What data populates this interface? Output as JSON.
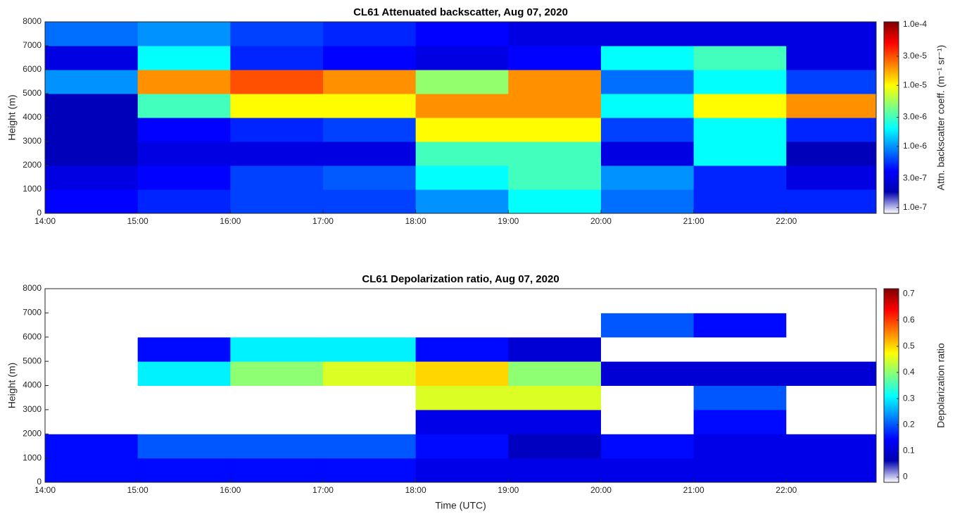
{
  "chart_data": [
    {
      "type": "heatmap",
      "title": "CL61 Attenuated backscatter, Aug 07, 2020",
      "ylabel": "Height (m)",
      "clabel": "Attn. backscatter coeff. (m⁻¹ sr⁻¹)",
      "x": [
        14.5,
        15.5,
        16.5,
        17.5,
        18.5,
        19.5,
        20.5,
        21.5,
        22.5
      ],
      "y": [
        500,
        1500,
        2500,
        3500,
        4500,
        5500,
        6500,
        7500
      ],
      "z": [
        [
          4e-07,
          5e-07,
          6e-07,
          6e-07,
          1e-06,
          2e-06,
          8e-07,
          5e-07,
          5e-07
        ],
        [
          3e-07,
          4e-07,
          6e-07,
          7e-07,
          2e-06,
          3e-06,
          1e-06,
          5e-07,
          3e-07
        ],
        [
          2e-07,
          3e-07,
          3e-07,
          3e-07,
          3e-06,
          3e-06,
          3e-07,
          2e-06,
          2e-07
        ],
        [
          2e-07,
          4e-07,
          5e-07,
          6e-07,
          1e-05,
          1e-05,
          6e-07,
          2e-06,
          5e-07
        ],
        [
          2e-07,
          3e-06,
          1e-05,
          1e-05,
          2e-05,
          2e-05,
          2e-06,
          1e-05,
          2e-05
        ],
        [
          1e-06,
          2e-05,
          3e-05,
          2e-05,
          5e-06,
          2e-05,
          8e-07,
          2e-06,
          6e-07
        ],
        [
          3e-07,
          2e-06,
          5e-07,
          4e-07,
          3e-07,
          4e-07,
          2e-06,
          3e-06,
          3e-07
        ],
        [
          8e-07,
          1e-06,
          6e-07,
          5e-07,
          4e-07,
          3e-07,
          3e-07,
          3e-07,
          3e-07
        ]
      ],
      "xlim": [
        14,
        22.97
      ],
      "ylim": [
        0,
        8000
      ],
      "xticks": [
        {
          "value": 14,
          "label": "14:00"
        },
        {
          "value": 15,
          "label": "15:00"
        },
        {
          "value": 16,
          "label": "16:00"
        },
        {
          "value": 17,
          "label": "17:00"
        },
        {
          "value": 18,
          "label": "18:00"
        },
        {
          "value": 19,
          "label": "19:00"
        },
        {
          "value": 20,
          "label": "20:00"
        },
        {
          "value": 21,
          "label": "21:00"
        },
        {
          "value": 22,
          "label": "22:00"
        }
      ],
      "yticks": [
        0,
        1000,
        2000,
        3000,
        4000,
        5000,
        6000,
        7000,
        8000
      ],
      "clim": [
        8e-08,
        0.00011
      ],
      "color_log": true,
      "cticks": [
        {
          "value": 1e-07,
          "label": "1.0e-7"
        },
        {
          "value": 3e-07,
          "label": "3.0e-7"
        },
        {
          "value": 1e-06,
          "label": "1.0e-6"
        },
        {
          "value": 3e-06,
          "label": "3.0e-6"
        },
        {
          "value": 1e-05,
          "label": "1.0e-5"
        },
        {
          "value": 3e-05,
          "label": "3.0e-5"
        },
        {
          "value": 0.0001,
          "label": "1.0e-4"
        }
      ],
      "colors": [
        "#ffffff",
        "#0000b0",
        "#0000ff",
        "#0080ff",
        "#00ffff",
        "#80ff80",
        "#ffff00",
        "#ff8000",
        "#ff0000",
        "#800000"
      ],
      "out_of_range_color": "#ffffff"
    },
    {
      "type": "heatmap",
      "title": "CL61 Depolarization ratio, Aug 07, 2020",
      "ylabel": "Height (m)",
      "xlabel": "Time (UTC)",
      "clabel": "Depolarization ratio",
      "x": [
        14.5,
        15.5,
        16.5,
        17.5,
        18.5,
        19.5,
        20.5,
        21.5,
        22.5
      ],
      "y": [
        500,
        1500,
        2500,
        3500,
        4500,
        5500,
        6500,
        7500
      ],
      "z": [
        [
          0.15,
          0.15,
          0.15,
          0.15,
          0.12,
          0.12,
          0.12,
          0.12,
          0.12
        ],
        [
          0.15,
          0.2,
          0.2,
          0.2,
          0.15,
          0.08,
          0.15,
          0.12,
          0.12
        ],
        [
          0.75,
          0.75,
          0.75,
          0.75,
          0.12,
          0.12,
          0.75,
          0.15,
          0.75
        ],
        [
          0.75,
          0.75,
          0.75,
          0.75,
          0.45,
          0.45,
          0.75,
          0.2,
          0.75
        ],
        [
          0.75,
          0.3,
          0.4,
          0.45,
          0.5,
          0.4,
          0.1,
          0.1,
          0.1
        ],
        [
          0.75,
          0.15,
          0.3,
          0.3,
          0.15,
          0.1,
          0.75,
          0.75,
          0.75
        ],
        [
          0.75,
          0.75,
          0.75,
          0.75,
          0.75,
          0.75,
          0.2,
          0.15,
          0.75
        ],
        [
          0.75,
          0.75,
          0.75,
          0.75,
          0.75,
          0.75,
          0.75,
          0.75,
          0.75
        ]
      ],
      "xlim": [
        14,
        22.97
      ],
      "ylim": [
        0,
        8000
      ],
      "xticks": [
        {
          "value": 14,
          "label": "14:00"
        },
        {
          "value": 15,
          "label": "15:00"
        },
        {
          "value": 16,
          "label": "16:00"
        },
        {
          "value": 17,
          "label": "17:00"
        },
        {
          "value": 18,
          "label": "18:00"
        },
        {
          "value": 19,
          "label": "19:00"
        },
        {
          "value": 20,
          "label": "20:00"
        },
        {
          "value": 21,
          "label": "21:00"
        },
        {
          "value": 22,
          "label": "22:00"
        }
      ],
      "yticks": [
        0,
        1000,
        2000,
        3000,
        4000,
        5000,
        6000,
        7000,
        8000
      ],
      "clim": [
        -0.02,
        0.72
      ],
      "color_log": false,
      "cticks": [
        0,
        0.1,
        0.2,
        0.3,
        0.4,
        0.5,
        0.6,
        0.7
      ],
      "colors": [
        "#ffffff",
        "#0000b0",
        "#0000ff",
        "#0080ff",
        "#00ffff",
        "#80ff80",
        "#ffff00",
        "#ff8000",
        "#ff0000",
        "#800000"
      ],
      "out_of_range_color": "#ffffff"
    }
  ]
}
